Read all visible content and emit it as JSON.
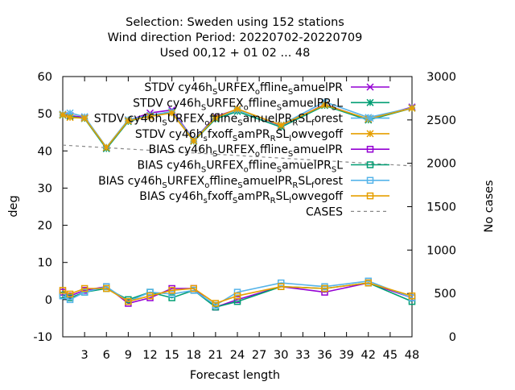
{
  "chart_data": {
    "type": "line",
    "title_lines": [
      "Selection: Sweden using   152 stations",
      "Wind direction   Period: 20220702-20220709",
      "Used  00,12  + 01 02 ... 48"
    ],
    "xlabel": "Forecast length",
    "ylabel": "deg",
    "y2label": "No cases",
    "xlim": [
      0,
      48
    ],
    "ylim": [
      -10,
      60
    ],
    "y2lim": [
      0,
      3000
    ],
    "x_ticks": [
      3,
      6,
      9,
      12,
      15,
      18,
      21,
      24,
      27,
      30,
      33,
      36,
      39,
      42,
      45,
      48
    ],
    "y_ticks": [
      -10,
      0,
      10,
      20,
      30,
      40,
      50,
      60
    ],
    "y2_ticks": [
      0,
      500,
      1000,
      1500,
      2000,
      2500,
      3000
    ],
    "x": [
      0,
      1,
      3,
      6,
      9,
      12,
      15,
      18,
      21,
      24,
      30,
      36,
      42,
      48
    ],
    "legend_position": "top-right",
    "grid": false,
    "series": [
      {
        "name": "STDV cy46h_SURFEX_offline_SamuelPR",
        "legend": [
          [
            "STDV cy46h",
            ""
          ],
          [
            "S",
            "sub"
          ],
          [
            "URFEX",
            ""
          ],
          [
            "o",
            "sub"
          ],
          [
            "ffline",
            ""
          ],
          [
            "S",
            "sub"
          ],
          [
            "amuelPR",
            ""
          ]
        ],
        "color": "#9400d3",
        "marker": "x",
        "axis": "y",
        "values": [
          49.8,
          49.5,
          49.0,
          40.8,
          48.2,
          50.2,
          51.0,
          43.0,
          49.2,
          51.2,
          46.8,
          52.5,
          48.5,
          51.8
        ]
      },
      {
        "name": "STDV cy46h_SURFEX_offline_SamuelPR_SL",
        "legend": [
          [
            "STDV cy46h",
            ""
          ],
          [
            "S",
            "sub"
          ],
          [
            "URFEX",
            ""
          ],
          [
            "o",
            "sub"
          ],
          [
            "ffline",
            ""
          ],
          [
            "S",
            "sub"
          ],
          [
            "amuelPR",
            ""
          ],
          [
            "S",
            "sub"
          ],
          [
            "L",
            ""
          ]
        ],
        "color": "#009e73",
        "marker": "x-plus",
        "axis": "y",
        "values": [
          49.6,
          49.3,
          48.7,
          40.6,
          47.9,
          49.5,
          50.4,
          42.6,
          48.6,
          50.6,
          46.4,
          52.2,
          48.3,
          51.5
        ]
      },
      {
        "name": "STDV cy46h_SURFEX_offline_SamuelPR_R_SL_forest",
        "legend": [
          [
            "STDV cy46h",
            ""
          ],
          [
            "S",
            "sub"
          ],
          [
            "URFEX",
            ""
          ],
          [
            "o",
            "sub"
          ],
          [
            "ffline",
            ""
          ],
          [
            "S",
            "sub"
          ],
          [
            "amuelPR",
            ""
          ],
          [
            "R",
            "sub"
          ],
          [
            "SL",
            ""
          ],
          [
            "f",
            "sub"
          ],
          [
            "orest",
            ""
          ]
        ],
        "color": "#56b4e9",
        "marker": "x-plus",
        "axis": "y",
        "values": [
          49.9,
          50.2,
          49.2,
          41.0,
          48.4,
          49.6,
          50.6,
          43.0,
          49.0,
          51.0,
          47.0,
          53.2,
          49.0,
          51.6
        ]
      },
      {
        "name": "STDV cy46h_sfxoff_SamPR_R_SL_lowvegoff",
        "legend": [
          [
            "STDV cy46h",
            ""
          ],
          [
            "s",
            "sub"
          ],
          [
            "fxoff",
            ""
          ],
          [
            "S",
            "sub"
          ],
          [
            "amPR",
            ""
          ],
          [
            "R",
            "sub"
          ],
          [
            "SL",
            ""
          ],
          [
            "l",
            "sub"
          ],
          [
            "owvegoff",
            ""
          ]
        ],
        "color": "#e69f00",
        "marker": "x-plus",
        "axis": "y",
        "values": [
          49.7,
          49.0,
          48.8,
          40.9,
          48.1,
          49.3,
          50.2,
          42.7,
          48.9,
          51.3,
          46.9,
          52.4,
          48.6,
          51.5
        ]
      },
      {
        "name": "BIAS cy46h_SURFEX_offline_SamuelPR",
        "legend": [
          [
            "BIAS cy46h",
            ""
          ],
          [
            "S",
            "sub"
          ],
          [
            "URFEX",
            ""
          ],
          [
            "o",
            "sub"
          ],
          [
            "ffline",
            ""
          ],
          [
            "S",
            "sub"
          ],
          [
            "amuelPR",
            ""
          ]
        ],
        "color": "#9400d3",
        "marker": "square",
        "axis": "y",
        "values": [
          2.0,
          1.0,
          2.5,
          3.5,
          -1.0,
          0.5,
          3.0,
          3.0,
          -2.0,
          0.0,
          3.5,
          2.0,
          4.5,
          0.5
        ]
      },
      {
        "name": "BIAS cy46h_SURFEX_offline_SamuelPR_SL",
        "legend": [
          [
            "BIAS cy46h",
            ""
          ],
          [
            "S",
            "sub"
          ],
          [
            "URFEX",
            ""
          ],
          [
            "o",
            "sub"
          ],
          [
            "ffline",
            ""
          ],
          [
            "S",
            "sub"
          ],
          [
            "amuelPR",
            ""
          ],
          [
            "S",
            "sub"
          ],
          [
            "L",
            ""
          ]
        ],
        "color": "#009e73",
        "marker": "square",
        "axis": "y",
        "values": [
          1.2,
          0.5,
          2.0,
          3.0,
          0.0,
          2.0,
          0.5,
          2.5,
          -2.0,
          -0.5,
          3.5,
          3.0,
          4.5,
          -0.5
        ]
      },
      {
        "name": "BIAS cy46h_SURFEX_offline_SamuelPR_R_SL_forest",
        "legend": [
          [
            "BIAS cy46h",
            ""
          ],
          [
            "S",
            "sub"
          ],
          [
            "URFEX",
            ""
          ],
          [
            "o",
            "sub"
          ],
          [
            "ffline",
            ""
          ],
          [
            "S",
            "sub"
          ],
          [
            "amuelPR",
            ""
          ],
          [
            "R",
            "sub"
          ],
          [
            "SL",
            ""
          ],
          [
            "f",
            "sub"
          ],
          [
            "orest",
            ""
          ]
        ],
        "color": "#56b4e9",
        "marker": "square",
        "axis": "y",
        "values": [
          1.0,
          0.0,
          2.0,
          3.5,
          -0.5,
          2.0,
          1.5,
          2.5,
          -1.5,
          2.0,
          4.5,
          3.5,
          5.0,
          0.5
        ]
      },
      {
        "name": "BIAS cy46h_sfxoff_SamPR_R_SL_lowvegoff",
        "legend": [
          [
            "BIAS cy46h",
            ""
          ],
          [
            "s",
            "sub"
          ],
          [
            "fxoff",
            ""
          ],
          [
            "S",
            "sub"
          ],
          [
            "amPR",
            ""
          ],
          [
            "R",
            "sub"
          ],
          [
            "SL",
            ""
          ],
          [
            "l",
            "sub"
          ],
          [
            "owvegoff",
            ""
          ]
        ],
        "color": "#e69f00",
        "marker": "square",
        "axis": "y",
        "values": [
          2.5,
          1.5,
          3.0,
          3.0,
          -0.5,
          1.0,
          2.5,
          3.0,
          -1.0,
          1.0,
          3.5,
          3.0,
          4.5,
          1.0
        ]
      },
      {
        "name": "CASES",
        "legend": [
          [
            "CASES",
            ""
          ]
        ],
        "color": "#888888",
        "marker": "none",
        "dashed": true,
        "axis": "y2",
        "x": [
          0,
          48
        ],
        "values": [
          2210,
          1970
        ]
      }
    ]
  }
}
